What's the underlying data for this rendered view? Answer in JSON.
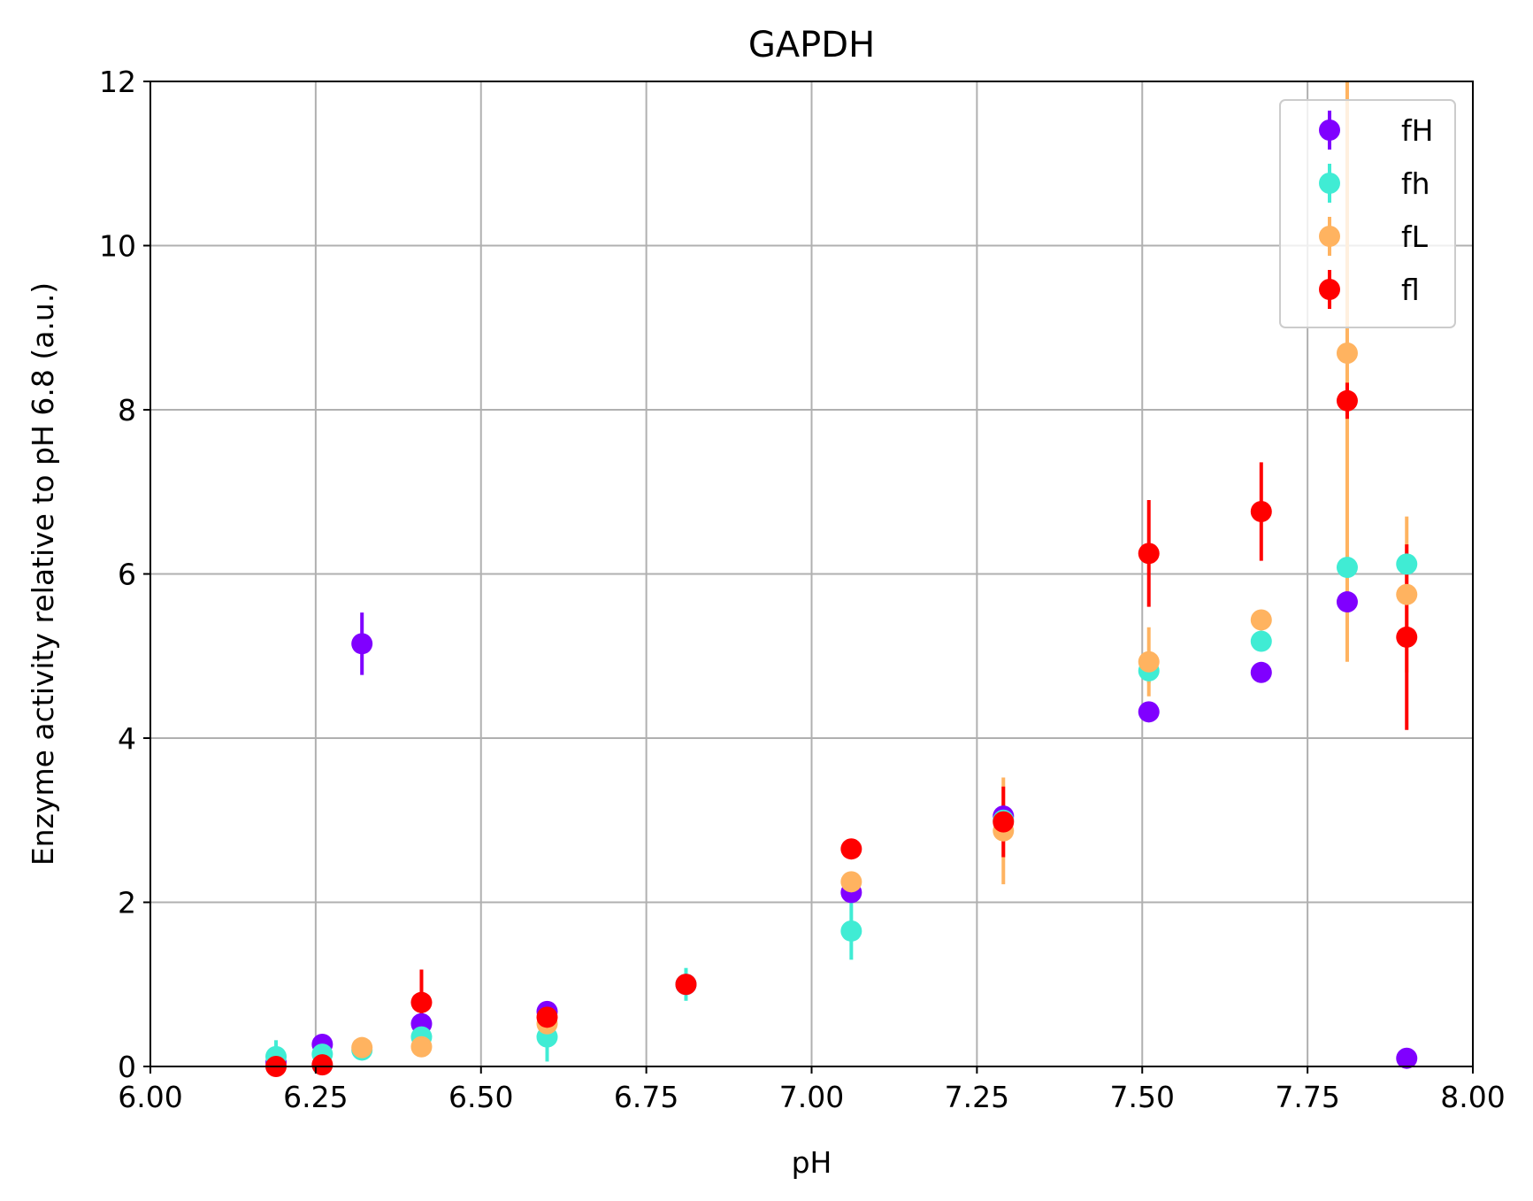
{
  "chart_data": {
    "type": "scatter",
    "title": "GAPDH",
    "xlabel": "pH",
    "ylabel": "Enzyme activity relative to pH 6.8 (a.u.)",
    "xlim": [
      6.0,
      8.0
    ],
    "ylim": [
      0,
      12
    ],
    "xticks": [
      "6.00",
      "6.25",
      "6.50",
      "6.75",
      "7.00",
      "7.25",
      "7.50",
      "7.75",
      "8.00"
    ],
    "yticks": [
      "0",
      "2",
      "4",
      "6",
      "8",
      "10",
      "12"
    ],
    "grid": true,
    "legend_position": "top-right",
    "series": [
      {
        "name": "fH",
        "color": "#8000ff",
        "points": [
          {
            "x": 6.19,
            "y": 0.05,
            "err": 0.05
          },
          {
            "x": 6.26,
            "y": 0.27,
            "err": 0.05
          },
          {
            "x": 6.32,
            "y": 5.15,
            "err": 0.38
          },
          {
            "x": 6.41,
            "y": 0.52,
            "err": 0.06
          },
          {
            "x": 6.6,
            "y": 0.67,
            "err": 0.05
          },
          {
            "x": 6.81,
            "y": 1.0,
            "err": 0.05
          },
          {
            "x": 7.06,
            "y": 2.12,
            "err": 0.1
          },
          {
            "x": 7.29,
            "y": 3.05,
            "err": 0.1
          },
          {
            "x": 7.51,
            "y": 4.32,
            "err": 0.1
          },
          {
            "x": 7.68,
            "y": 4.8,
            "err": 0.1
          },
          {
            "x": 7.81,
            "y": 5.66,
            "err": 0.1
          },
          {
            "x": 7.9,
            "y": 0.1,
            "err": 0.05
          }
        ]
      },
      {
        "name": "fh",
        "color": "#40ecd4",
        "points": [
          {
            "x": 6.19,
            "y": 0.12,
            "err": 0.2
          },
          {
            "x": 6.26,
            "y": 0.15,
            "err": 0.1
          },
          {
            "x": 6.32,
            "y": 0.2,
            "err": 0.05
          },
          {
            "x": 6.41,
            "y": 0.36,
            "err": 0.05
          },
          {
            "x": 6.6,
            "y": 0.36,
            "err": 0.3
          },
          {
            "x": 6.81,
            "y": 1.0,
            "err": 0.2
          },
          {
            "x": 7.06,
            "y": 1.65,
            "err": 0.35
          },
          {
            "x": 7.29,
            "y": 3.0,
            "err": 0.2
          },
          {
            "x": 7.51,
            "y": 4.82,
            "err": 0.15
          },
          {
            "x": 7.68,
            "y": 5.18,
            "err": 0.1
          },
          {
            "x": 7.81,
            "y": 6.08,
            "err": 0.15
          },
          {
            "x": 7.9,
            "y": 6.12,
            "err": 0.1
          }
        ]
      },
      {
        "name": "fL",
        "color": "#ffb360",
        "points": [
          {
            "x": 6.32,
            "y": 0.23,
            "err": 0.05
          },
          {
            "x": 6.41,
            "y": 0.24,
            "err": 0.05
          },
          {
            "x": 6.6,
            "y": 0.52,
            "err": 0.05
          },
          {
            "x": 7.06,
            "y": 2.25,
            "err": 0.1
          },
          {
            "x": 7.29,
            "y": 2.87,
            "err": 0.65
          },
          {
            "x": 7.51,
            "y": 4.93,
            "err": 0.42
          },
          {
            "x": 7.68,
            "y": 5.44,
            "err": 0.1
          },
          {
            "x": 7.81,
            "y": 8.69,
            "err": 3.76
          },
          {
            "x": 7.9,
            "y": 5.75,
            "err": 0.95
          }
        ]
      },
      {
        "name": "fl",
        "color": "#ff0000",
        "points": [
          {
            "x": 6.19,
            "y": 0.0,
            "err": 0.05
          },
          {
            "x": 6.26,
            "y": 0.02,
            "err": 0.05
          },
          {
            "x": 6.41,
            "y": 0.78,
            "err": 0.4
          },
          {
            "x": 6.6,
            "y": 0.6,
            "err": 0.05
          },
          {
            "x": 6.81,
            "y": 1.0,
            "err": 0.1
          },
          {
            "x": 7.06,
            "y": 2.65,
            "err": 0.1
          },
          {
            "x": 7.29,
            "y": 2.98,
            "err": 0.43
          },
          {
            "x": 7.51,
            "y": 6.25,
            "err": 0.65
          },
          {
            "x": 7.68,
            "y": 6.76,
            "err": 0.6
          },
          {
            "x": 7.81,
            "y": 8.11,
            "err": 0.22
          },
          {
            "x": 7.9,
            "y": 5.23,
            "err": 1.13
          }
        ]
      }
    ]
  }
}
